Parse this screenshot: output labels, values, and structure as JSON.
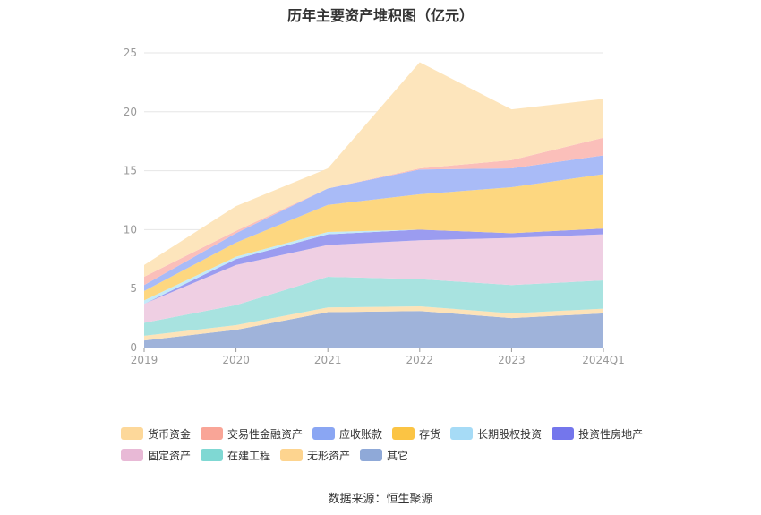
{
  "title": "历年主要资产堆积图（亿元）",
  "source": "数据来源：恒生聚源",
  "chart_data": {
    "type": "area",
    "stacked": true,
    "title": "历年主要资产堆积图（亿元）",
    "x": [
      "2019",
      "2020",
      "2021",
      "2022",
      "2023",
      "2024Q1"
    ],
    "ylim": [
      0,
      25
    ],
    "yticks": [
      0,
      5,
      10,
      15,
      20,
      25
    ],
    "grid": true,
    "legend_position": "bottom",
    "series": [
      {
        "name": "其它",
        "color": "#9fb3da",
        "values": [
          0.6,
          1.5,
          3.0,
          3.1,
          2.5,
          2.9
        ]
      },
      {
        "name": "无形资产",
        "color": "#fde3b8",
        "values": [
          0.4,
          0.4,
          0.4,
          0.4,
          0.4,
          0.4
        ]
      },
      {
        "name": "在建工程",
        "color": "#a8e3e0",
        "values": [
          1.1,
          1.7,
          2.6,
          2.3,
          2.4,
          2.4
        ]
      },
      {
        "name": "固定资产",
        "color": "#efcfe3",
        "values": [
          1.6,
          3.4,
          2.7,
          3.3,
          4.0,
          3.9
        ]
      },
      {
        "name": "投资性房地产",
        "color": "#9b9cf0",
        "values": [
          0.0,
          0.5,
          0.9,
          0.9,
          0.4,
          0.5
        ]
      },
      {
        "name": "长期股权投资",
        "color": "#c3eaf8",
        "values": [
          0.3,
          0.2,
          0.2,
          0.0,
          0.0,
          0.0
        ]
      },
      {
        "name": "存货",
        "color": "#fdd780",
        "values": [
          0.8,
          1.2,
          2.3,
          3.0,
          3.9,
          4.6
        ]
      },
      {
        "name": "应收账款",
        "color": "#a9bbf7",
        "values": [
          0.5,
          0.8,
          1.4,
          2.1,
          1.6,
          1.6
        ]
      },
      {
        "name": "交易性金融资产",
        "color": "#fbbfba",
        "values": [
          0.7,
          0.2,
          0.0,
          0.1,
          0.7,
          1.5
        ]
      },
      {
        "name": "货币资金",
        "color": "#fde5bc",
        "values": [
          1.0,
          2.1,
          1.7,
          9.0,
          4.3,
          3.3
        ]
      }
    ],
    "legend_rows": [
      [
        {
          "name": "货币资金",
          "color": "#fdd89a"
        },
        {
          "name": "交易性金融资产",
          "color": "#f9a597"
        },
        {
          "name": "应收账款",
          "color": "#8aa6f3"
        },
        {
          "name": "存货",
          "color": "#fbc444"
        },
        {
          "name": "长期股权投资",
          "color": "#a6dbf6"
        },
        {
          "name": "投资性房地产",
          "color": "#7476ec"
        }
      ],
      [
        {
          "name": "固定资产",
          "color": "#e8b9d6"
        },
        {
          "name": "在建工程",
          "color": "#7fd8d3"
        },
        {
          "name": "无形资产",
          "color": "#fdd48f"
        },
        {
          "name": "其它",
          "color": "#8fa9d8"
        }
      ]
    ]
  }
}
